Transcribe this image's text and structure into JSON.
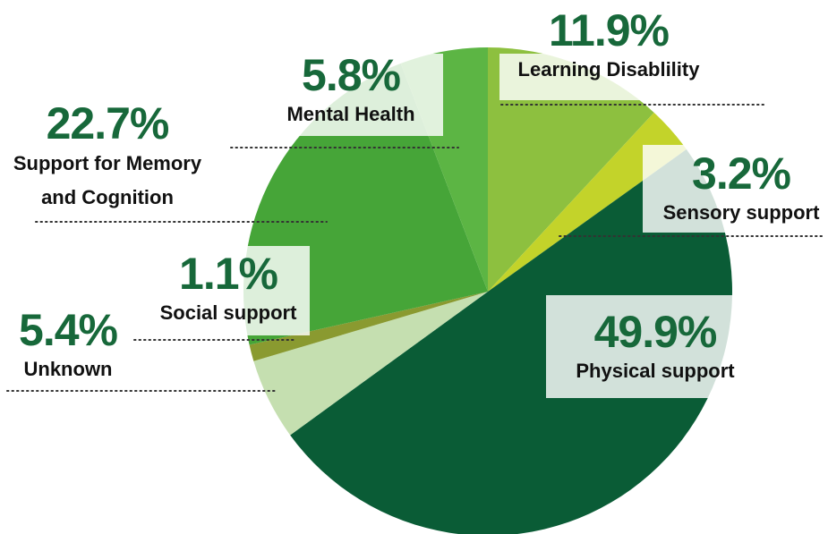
{
  "chart_data": {
    "type": "pie",
    "categories": [
      "Learning Disablility",
      "Sensory support",
      "Physical support",
      "Unknown",
      "Social support",
      "Support for Memory and Cognition",
      "Mental Health"
    ],
    "values": [
      11.9,
      3.2,
      49.9,
      5.4,
      1.1,
      22.7,
      5.8
    ],
    "value_labels": [
      "11.9%",
      "3.2%",
      "49.9%",
      "5.4%",
      "1.1%",
      "22.7%",
      "5.8%"
    ],
    "colors": [
      "#8dc03f",
      "#c3d32a",
      "#0a5c36",
      "#c5dfb0",
      "#8a9a30",
      "#46a538",
      "#5cb544"
    ]
  }
}
